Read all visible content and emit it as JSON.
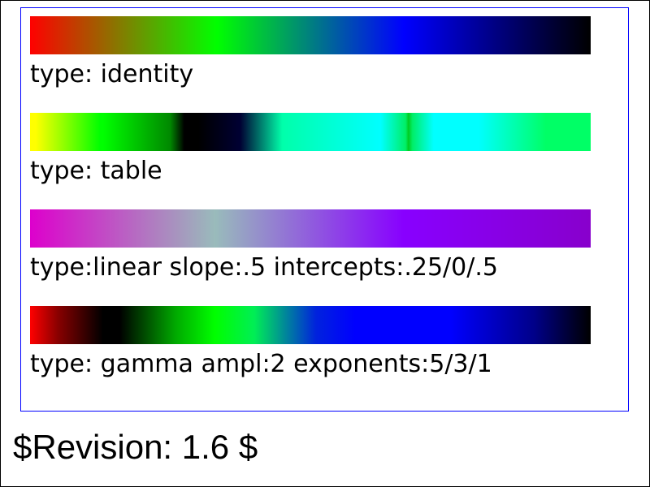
{
  "strips": [
    {
      "id": "identity",
      "caption": "type: identity",
      "colors": [
        "#ff0000",
        "#00ff00",
        "#0000ff",
        "#000000"
      ]
    },
    {
      "id": "table",
      "caption": "type: table",
      "colors": [
        "#ffff00",
        "#00ff00",
        "#000000",
        "#00ffff",
        "#00ff66"
      ]
    },
    {
      "id": "linear",
      "caption": "type:linear slope:.5 intercepts:.25/0/.5",
      "colors": [
        "#dd00cc",
        "#99bbbb",
        "#8800ff"
      ]
    },
    {
      "id": "gamma",
      "caption": "type: gamma ampl:2 exponents:5/3/1",
      "colors": [
        "#ff0000",
        "#000000",
        "#00ff00",
        "#0000ff",
        "#000000"
      ]
    }
  ],
  "revision": "$Revision: 1.6 $",
  "frame": {
    "outer_border_color": "#000000",
    "inner_border_color": "#0000ff"
  }
}
